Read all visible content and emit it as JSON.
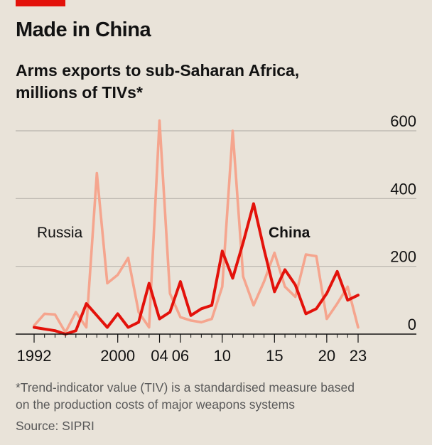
{
  "header": {
    "title": "Made in China",
    "subtitle_line1": "Arms exports to sub-Saharan Africa,",
    "subtitle_line2": "millions of TIVs*"
  },
  "footer": {
    "footnote_line1": "*Trend-indicator value (TIV) is a standardised measure based",
    "footnote_line2": "on the production costs of major weapons systems",
    "source": "Source: SIPRI"
  },
  "chart_data": {
    "type": "line",
    "title": "Made in China",
    "subtitle": "Arms exports to sub-Saharan Africa, millions of TIVs*",
    "ylim": [
      0,
      600
    ],
    "xlim": [
      1992,
      2023
    ],
    "yticks": [
      0,
      200,
      400,
      600
    ],
    "xticks": [
      {
        "value": 1992,
        "label": "1992"
      },
      {
        "value": 2000,
        "label": "2000"
      },
      {
        "value": 2004,
        "label": "04"
      },
      {
        "value": 2006,
        "label": "06"
      },
      {
        "value": 2010,
        "label": "10"
      },
      {
        "value": 2015,
        "label": "15"
      },
      {
        "value": 2020,
        "label": "20"
      },
      {
        "value": 2023,
        "label": "23"
      }
    ],
    "grid": true,
    "x": [
      1992,
      1993,
      1994,
      1995,
      1996,
      1997,
      1998,
      1999,
      2000,
      2001,
      2002,
      2003,
      2004,
      2005,
      2006,
      2007,
      2008,
      2009,
      2010,
      2011,
      2012,
      2013,
      2014,
      2015,
      2016,
      2017,
      2018,
      2019,
      2020,
      2021,
      2022,
      2023
    ],
    "series": [
      {
        "name": "Russia",
        "color": "#F5A58E",
        "values": [
          25,
          60,
          58,
          5,
          65,
          20,
          475,
          150,
          175,
          225,
          65,
          20,
          630,
          120,
          50,
          40,
          35,
          45,
          140,
          600,
          170,
          85,
          155,
          240,
          140,
          110,
          235,
          230,
          45,
          90,
          140,
          20
        ]
      },
      {
        "name": "China",
        "color": "#E3120B",
        "values": [
          20,
          15,
          10,
          0,
          10,
          90,
          55,
          20,
          60,
          20,
          35,
          150,
          45,
          65,
          155,
          55,
          75,
          85,
          245,
          165,
          270,
          385,
          250,
          125,
          190,
          145,
          60,
          75,
          120,
          185,
          100,
          115
        ]
      }
    ]
  }
}
